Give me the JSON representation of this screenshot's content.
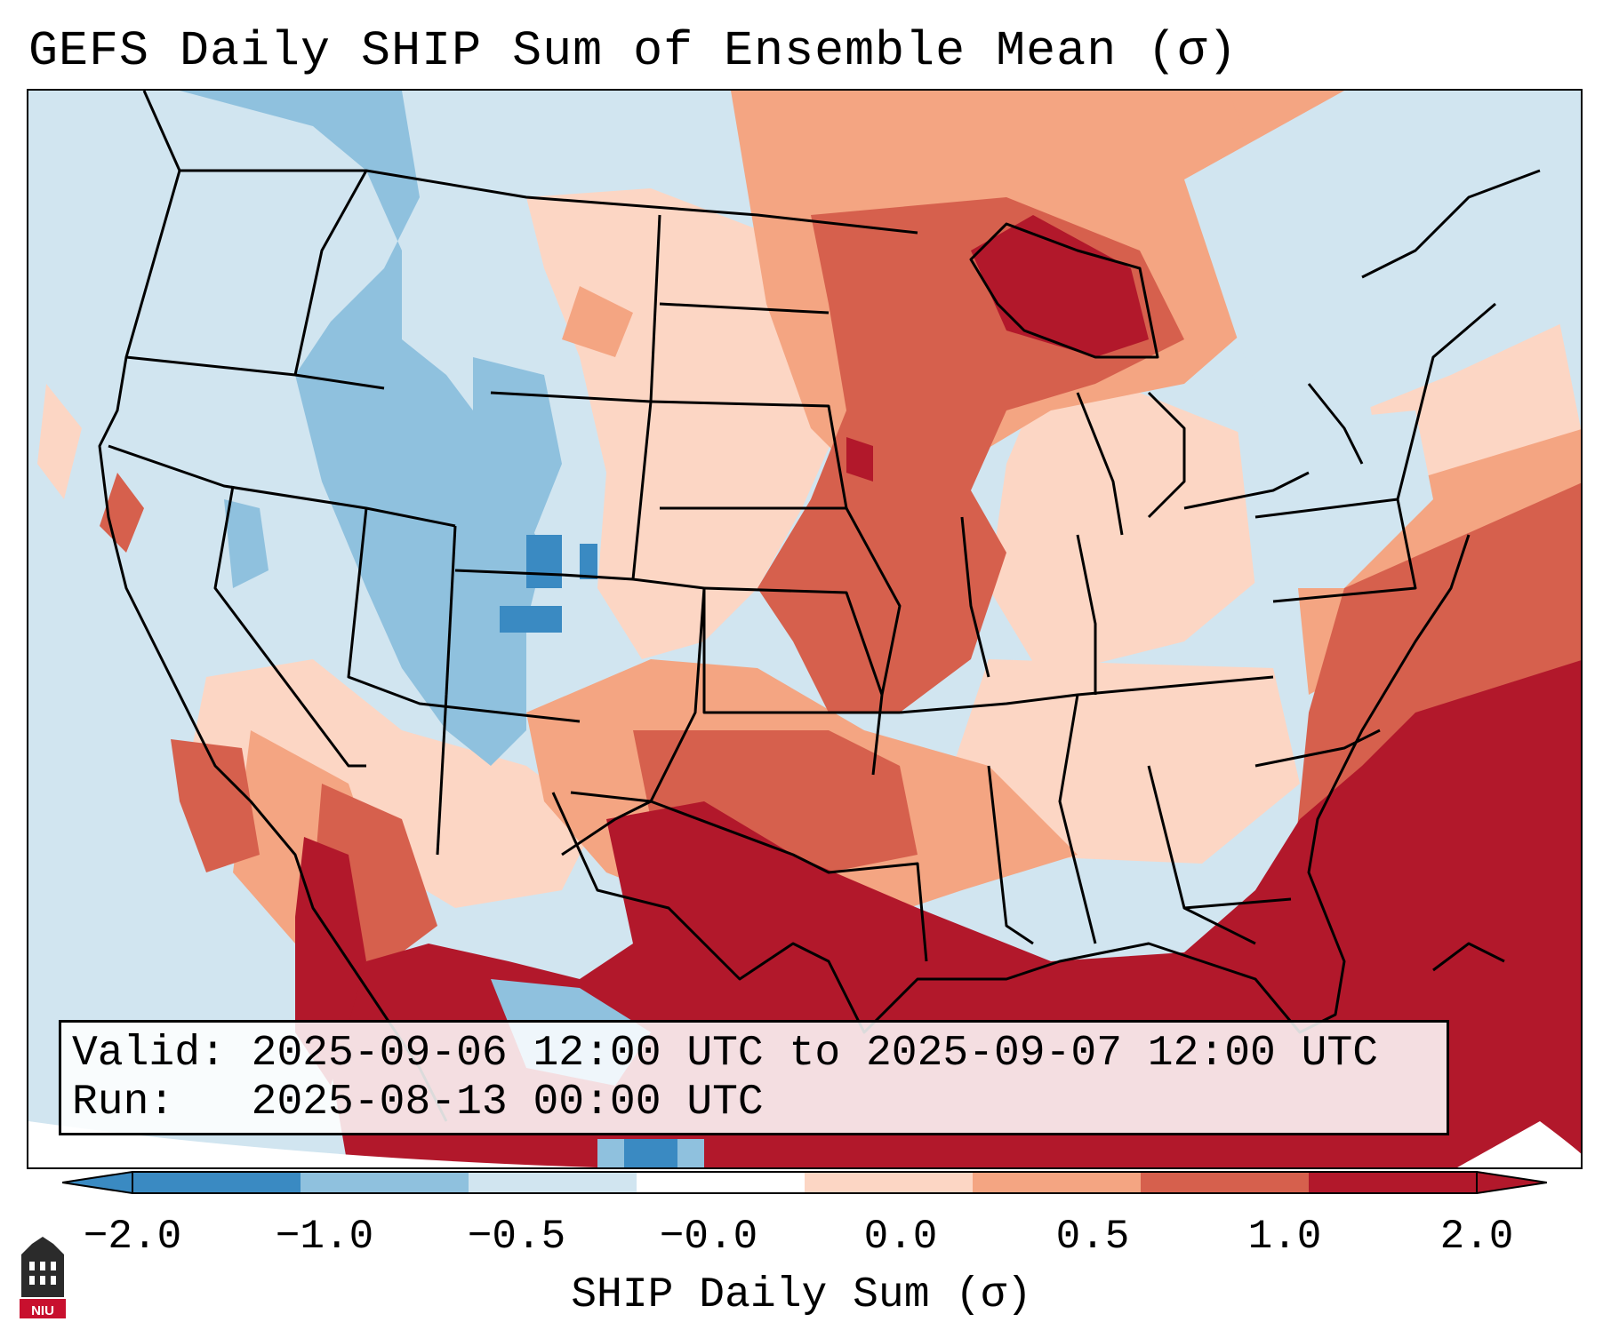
{
  "title": "GEFS Daily SHIP Sum of Ensemble Mean (σ)",
  "valid_label": "Valid:",
  "valid_value": "2025-09-06 12:00 UTC to 2025-09-07 12:00 UTC",
  "run_label": "Run:",
  "run_value": "2025-08-13 00:00 UTC",
  "colorbar": {
    "label": "SHIP Daily Sum (σ)",
    "ticks": [
      "−2.0",
      "−1.0",
      "−0.5",
      "−0.0",
      "0.0",
      "0.5",
      "1.0",
      "2.0"
    ],
    "colors": [
      "#3a8ac2",
      "#8fc1de",
      "#d1e5f0",
      "#ffffff",
      "#fcd6c4",
      "#f4a582",
      "#d6604d",
      "#b2182b"
    ]
  },
  "logo_text": "NIU",
  "colors": {
    "strong_blue": "#3a8ac2",
    "mid_blue": "#8fc1de",
    "light_blue": "#d1e5f0",
    "light_red": "#fcd6c4",
    "salmon": "#f4a582",
    "red": "#d6604d",
    "dark_red": "#b2182b"
  }
}
